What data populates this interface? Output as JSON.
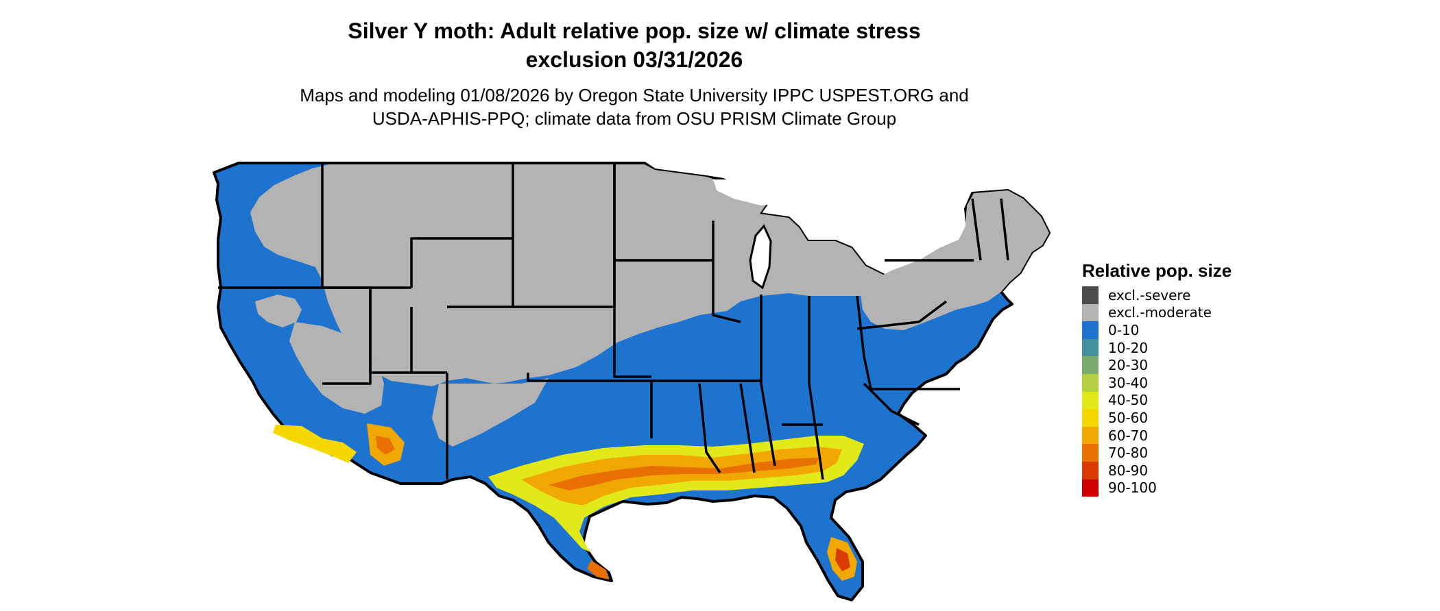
{
  "title": {
    "line1": "Silver Y moth: Adult relative pop. size w/ climate stress",
    "line2": "exclusion 03/31/2026"
  },
  "subtitle": {
    "line1": "Maps and modeling 01/08/2026 by Oregon State University IPPC USPEST.ORG and",
    "line2": "USDA-APHIS-PPQ; climate data from OSU PRISM Climate Group"
  },
  "legend": {
    "title": "Relative pop. size",
    "items": [
      {
        "label": "excl.-severe",
        "color": "#4d4d4d"
      },
      {
        "label": "excl.-moderate",
        "color": "#b3b3b3"
      },
      {
        "label": "0-10",
        "color": "#1e73cf"
      },
      {
        "label": "10-20",
        "color": "#4591a2"
      },
      {
        "label": "20-30",
        "color": "#7bab6e"
      },
      {
        "label": "30-40",
        "color": "#b3cf42"
      },
      {
        "label": "40-50",
        "color": "#e1ea18"
      },
      {
        "label": "50-60",
        "color": "#f5d800"
      },
      {
        "label": "60-70",
        "color": "#f0a800"
      },
      {
        "label": "70-80",
        "color": "#e77000"
      },
      {
        "label": "80-90",
        "color": "#d83a00"
      },
      {
        "label": "90-100",
        "color": "#cc0000"
      }
    ]
  },
  "map": {
    "region": "Contiguous United States",
    "fill_colors": {
      "land_default": "#1e73cf",
      "excluded": "#b3b3b3",
      "border": "#000000"
    }
  }
}
